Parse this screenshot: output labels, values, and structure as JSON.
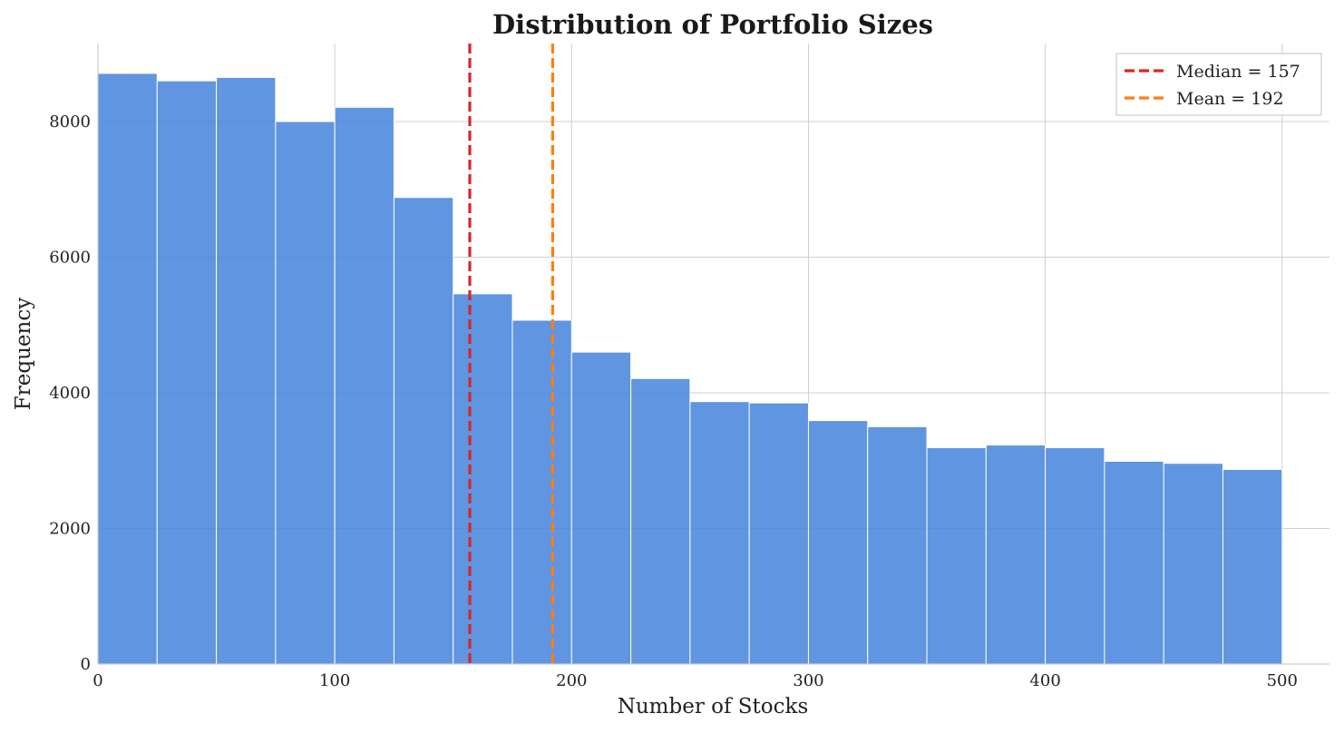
{
  "chart_data": {
    "type": "bar",
    "title": "Distribution of Portfolio Sizes",
    "xlabel": "Number of Stocks",
    "ylabel": "Frequency",
    "xlim": [
      0,
      520
    ],
    "ylim": [
      0,
      9150
    ],
    "xticks": [
      0,
      100,
      200,
      300,
      400,
      500
    ],
    "yticks": [
      0,
      2000,
      4000,
      6000,
      8000
    ],
    "grid": true,
    "bar_color": "#4a86dd",
    "bins": [
      {
        "x0": 0,
        "x1": 25,
        "count": 8710
      },
      {
        "x0": 25,
        "x1": 50,
        "count": 8600
      },
      {
        "x0": 50,
        "x1": 75,
        "count": 8650
      },
      {
        "x0": 75,
        "x1": 100,
        "count": 8000
      },
      {
        "x0": 100,
        "x1": 125,
        "count": 8210
      },
      {
        "x0": 125,
        "x1": 150,
        "count": 6880
      },
      {
        "x0": 150,
        "x1": 175,
        "count": 5460
      },
      {
        "x0": 175,
        "x1": 200,
        "count": 5070
      },
      {
        "x0": 200,
        "x1": 225,
        "count": 4600
      },
      {
        "x0": 225,
        "x1": 250,
        "count": 4210
      },
      {
        "x0": 250,
        "x1": 275,
        "count": 3870
      },
      {
        "x0": 275,
        "x1": 300,
        "count": 3850
      },
      {
        "x0": 300,
        "x1": 325,
        "count": 3590
      },
      {
        "x0": 325,
        "x1": 350,
        "count": 3500
      },
      {
        "x0": 350,
        "x1": 375,
        "count": 3190
      },
      {
        "x0": 375,
        "x1": 400,
        "count": 3230
      },
      {
        "x0": 400,
        "x1": 425,
        "count": 3190
      },
      {
        "x0": 425,
        "x1": 450,
        "count": 2990
      },
      {
        "x0": 450,
        "x1": 475,
        "count": 2960
      },
      {
        "x0": 475,
        "x1": 500,
        "count": 2870
      }
    ],
    "reference_lines": [
      {
        "label": "Median = 157",
        "x": 157,
        "color": "#d62728",
        "style": "dashed"
      },
      {
        "label": "Mean = 192",
        "x": 192,
        "color": "#ff7f0e",
        "style": "dashed"
      }
    ],
    "legend_position": "top-right"
  }
}
